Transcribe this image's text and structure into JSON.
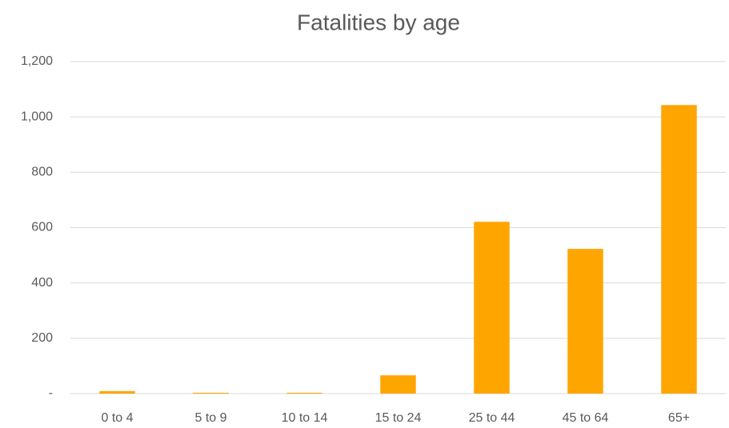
{
  "chart_data": {
    "type": "bar",
    "title": "Fatalities by age",
    "categories": [
      "0 to 4",
      "5 to 9",
      "10 to 14",
      "15 to 24",
      "25 to 44",
      "45 to 64",
      "65+"
    ],
    "values": [
      9,
      3,
      3,
      66,
      621,
      523,
      1043
    ],
    "color": "#ffa500",
    "ylim": [
      0,
      1200
    ],
    "yticks": [
      {
        "value": 0,
        "label": "-"
      },
      200,
      400,
      600,
      800,
      {
        "value": 1000,
        "label": "1,000"
      },
      {
        "value": 1200,
        "label": "1,200"
      }
    ],
    "grid": true
  }
}
